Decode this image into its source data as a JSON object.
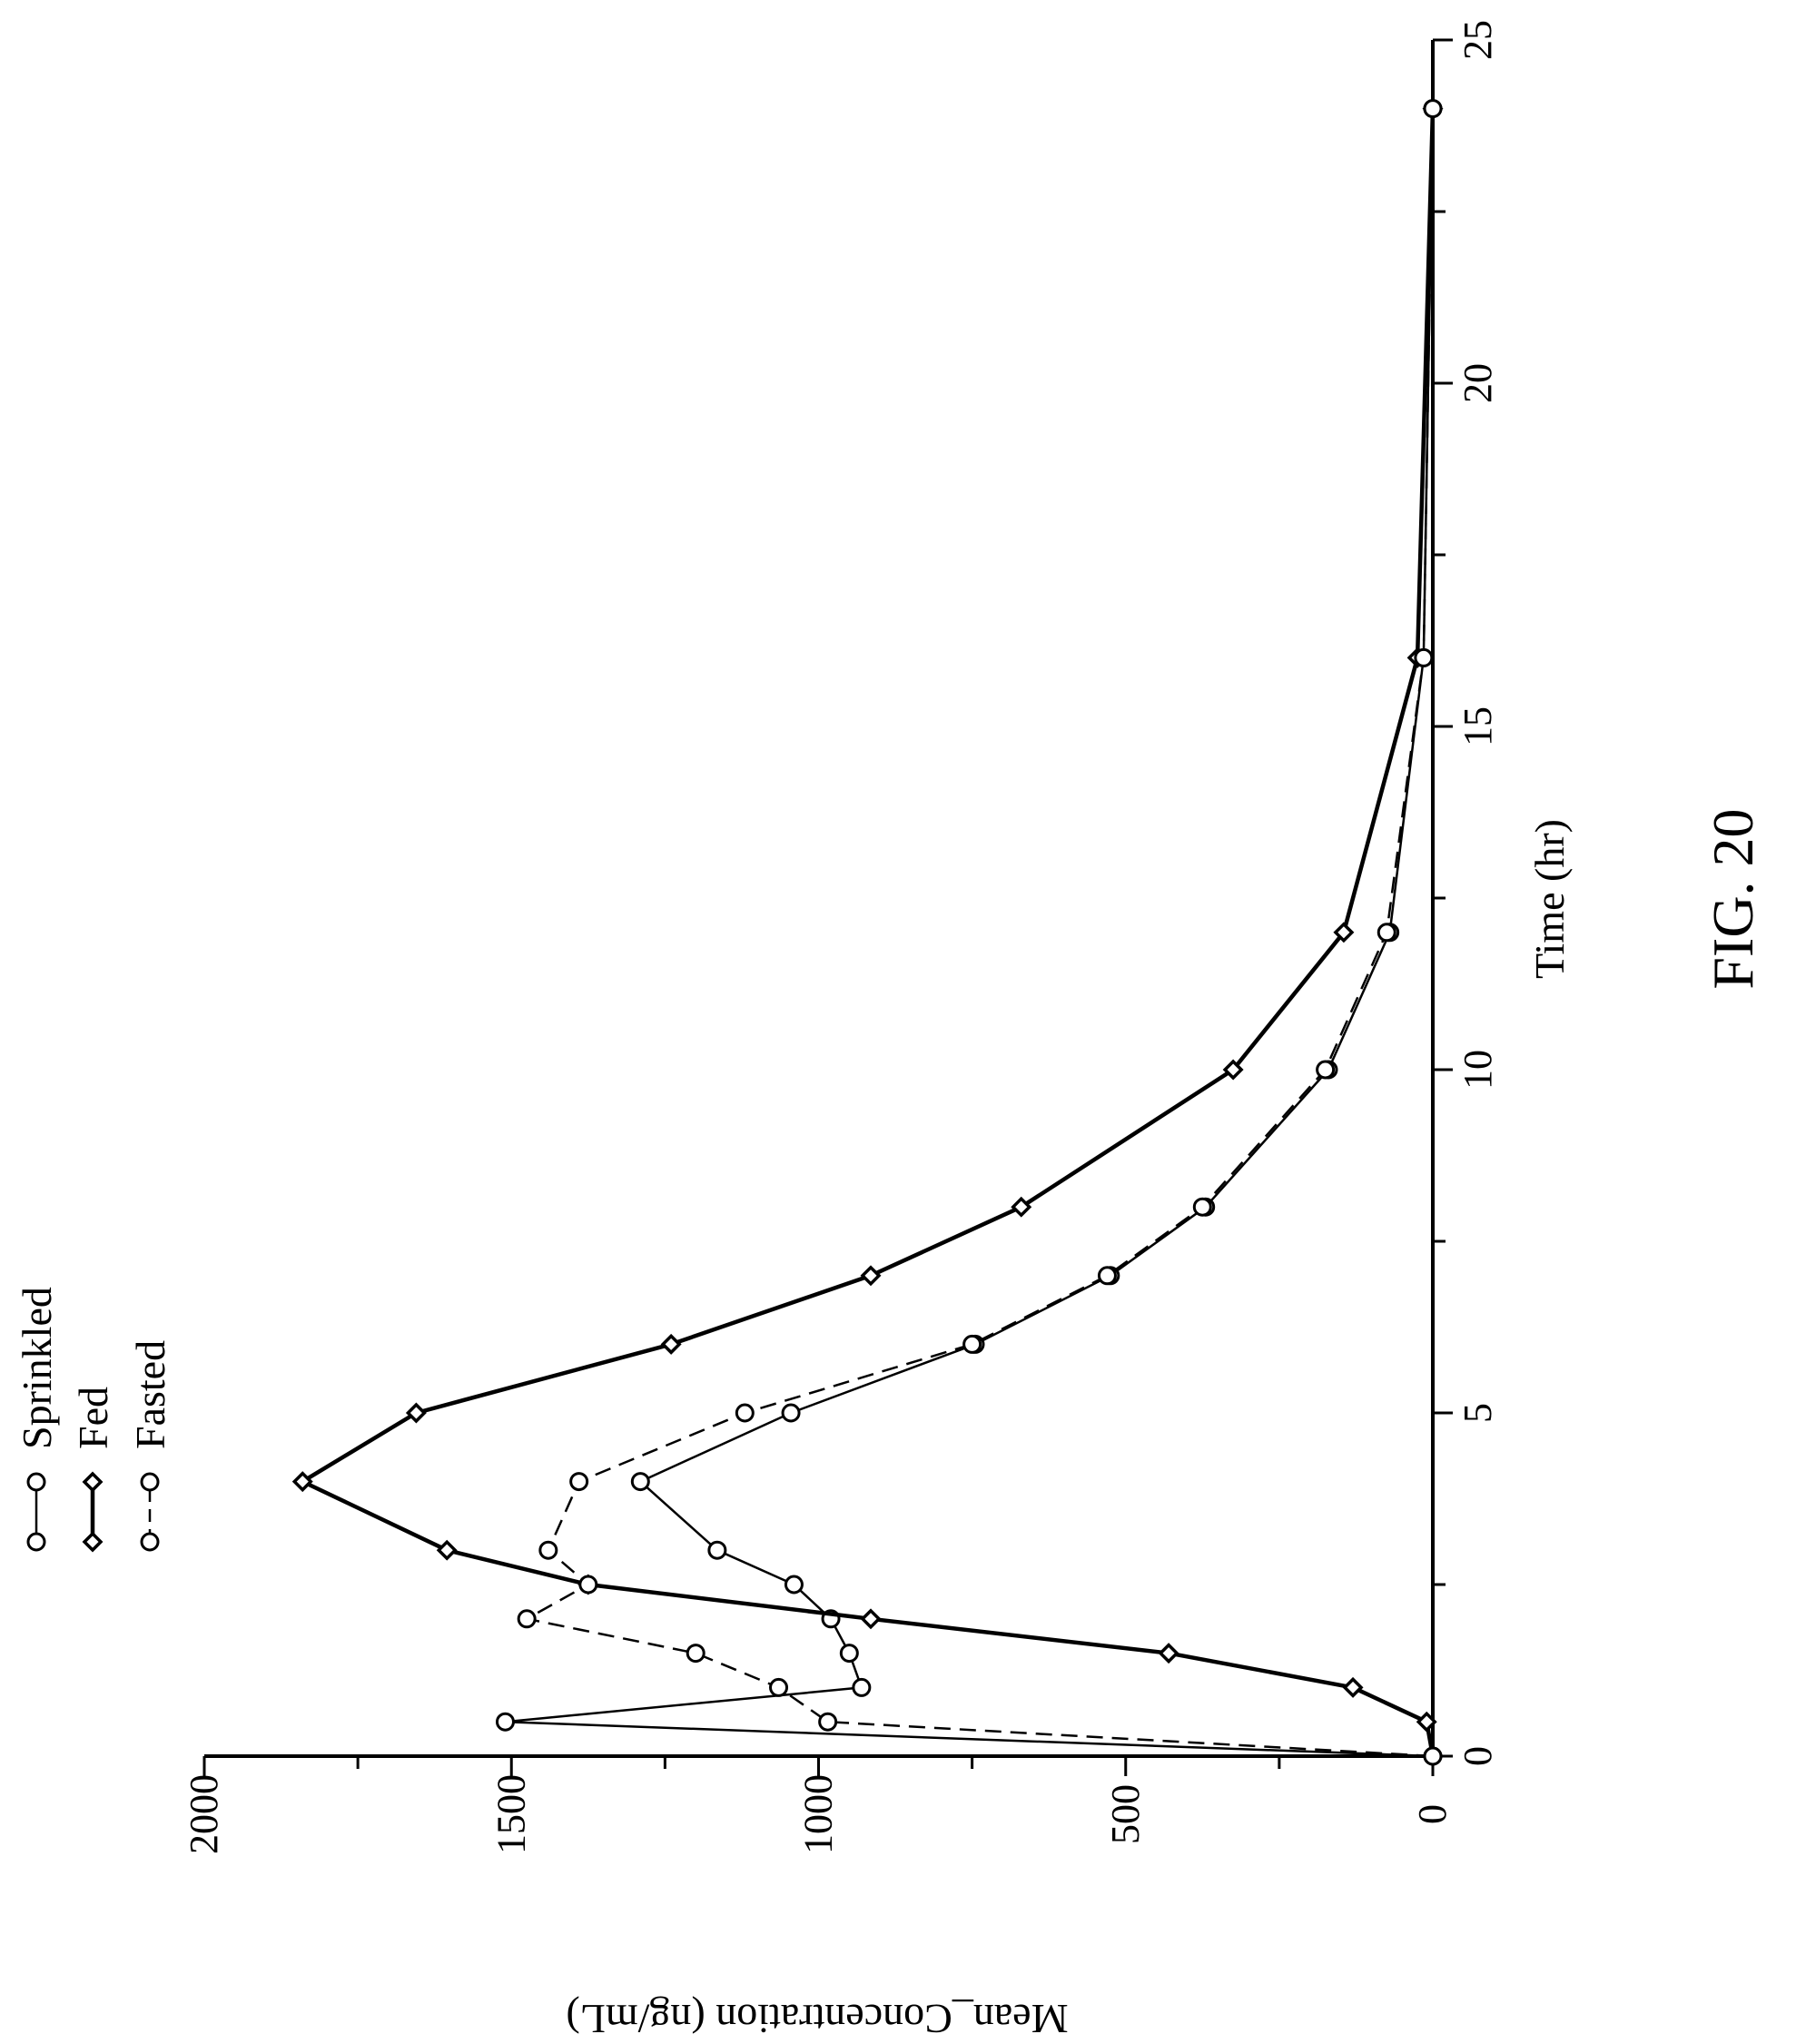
{
  "figure_label": "FIG. 20",
  "chart_data": {
    "type": "line",
    "orientation": "rotated-90-ccw",
    "xlabel": "Time (hr)",
    "ylabel": "Mean_Concentration (ng/mL)",
    "xlim": [
      0,
      25
    ],
    "ylim": [
      0,
      2000
    ],
    "x_ticks": [
      0,
      5,
      10,
      15,
      20,
      25
    ],
    "y_ticks": [
      0,
      500,
      1000,
      1500,
      2000
    ],
    "legend_position": "top-left",
    "grid": false,
    "series": [
      {
        "name": "Sprinkled",
        "marker": "circle",
        "line_style": "solid-thin",
        "x": [
          0,
          0.5,
          1,
          1.5,
          2,
          2.5,
          3,
          4,
          5,
          6,
          7,
          8,
          10,
          12,
          16,
          24
        ],
        "y": [
          0,
          1510,
          930,
          950,
          980,
          1040,
          1165,
          1290,
          1045,
          745,
          525,
          370,
          170,
          70,
          15,
          0
        ]
      },
      {
        "name": "Fed",
        "marker": "diamond",
        "line_style": "solid-thick",
        "x": [
          0,
          0.5,
          1,
          1.5,
          2,
          2.5,
          3,
          4,
          5,
          6,
          7,
          8,
          10,
          12,
          16,
          24
        ],
        "y": [
          0,
          10,
          130,
          430,
          915,
          1375,
          1605,
          1840,
          1655,
          1240,
          915,
          670,
          325,
          145,
          25,
          0
        ]
      },
      {
        "name": "Fasted",
        "marker": "circle",
        "line_style": "dashed",
        "x": [
          0,
          0.5,
          1,
          1.5,
          2,
          2.5,
          3,
          4,
          5,
          6,
          7,
          8,
          10,
          12,
          16,
          24
        ],
        "y": [
          0,
          985,
          1065,
          1200,
          1475,
          1375,
          1440,
          1390,
          1120,
          750,
          530,
          375,
          175,
          75,
          15,
          0
        ]
      }
    ]
  }
}
